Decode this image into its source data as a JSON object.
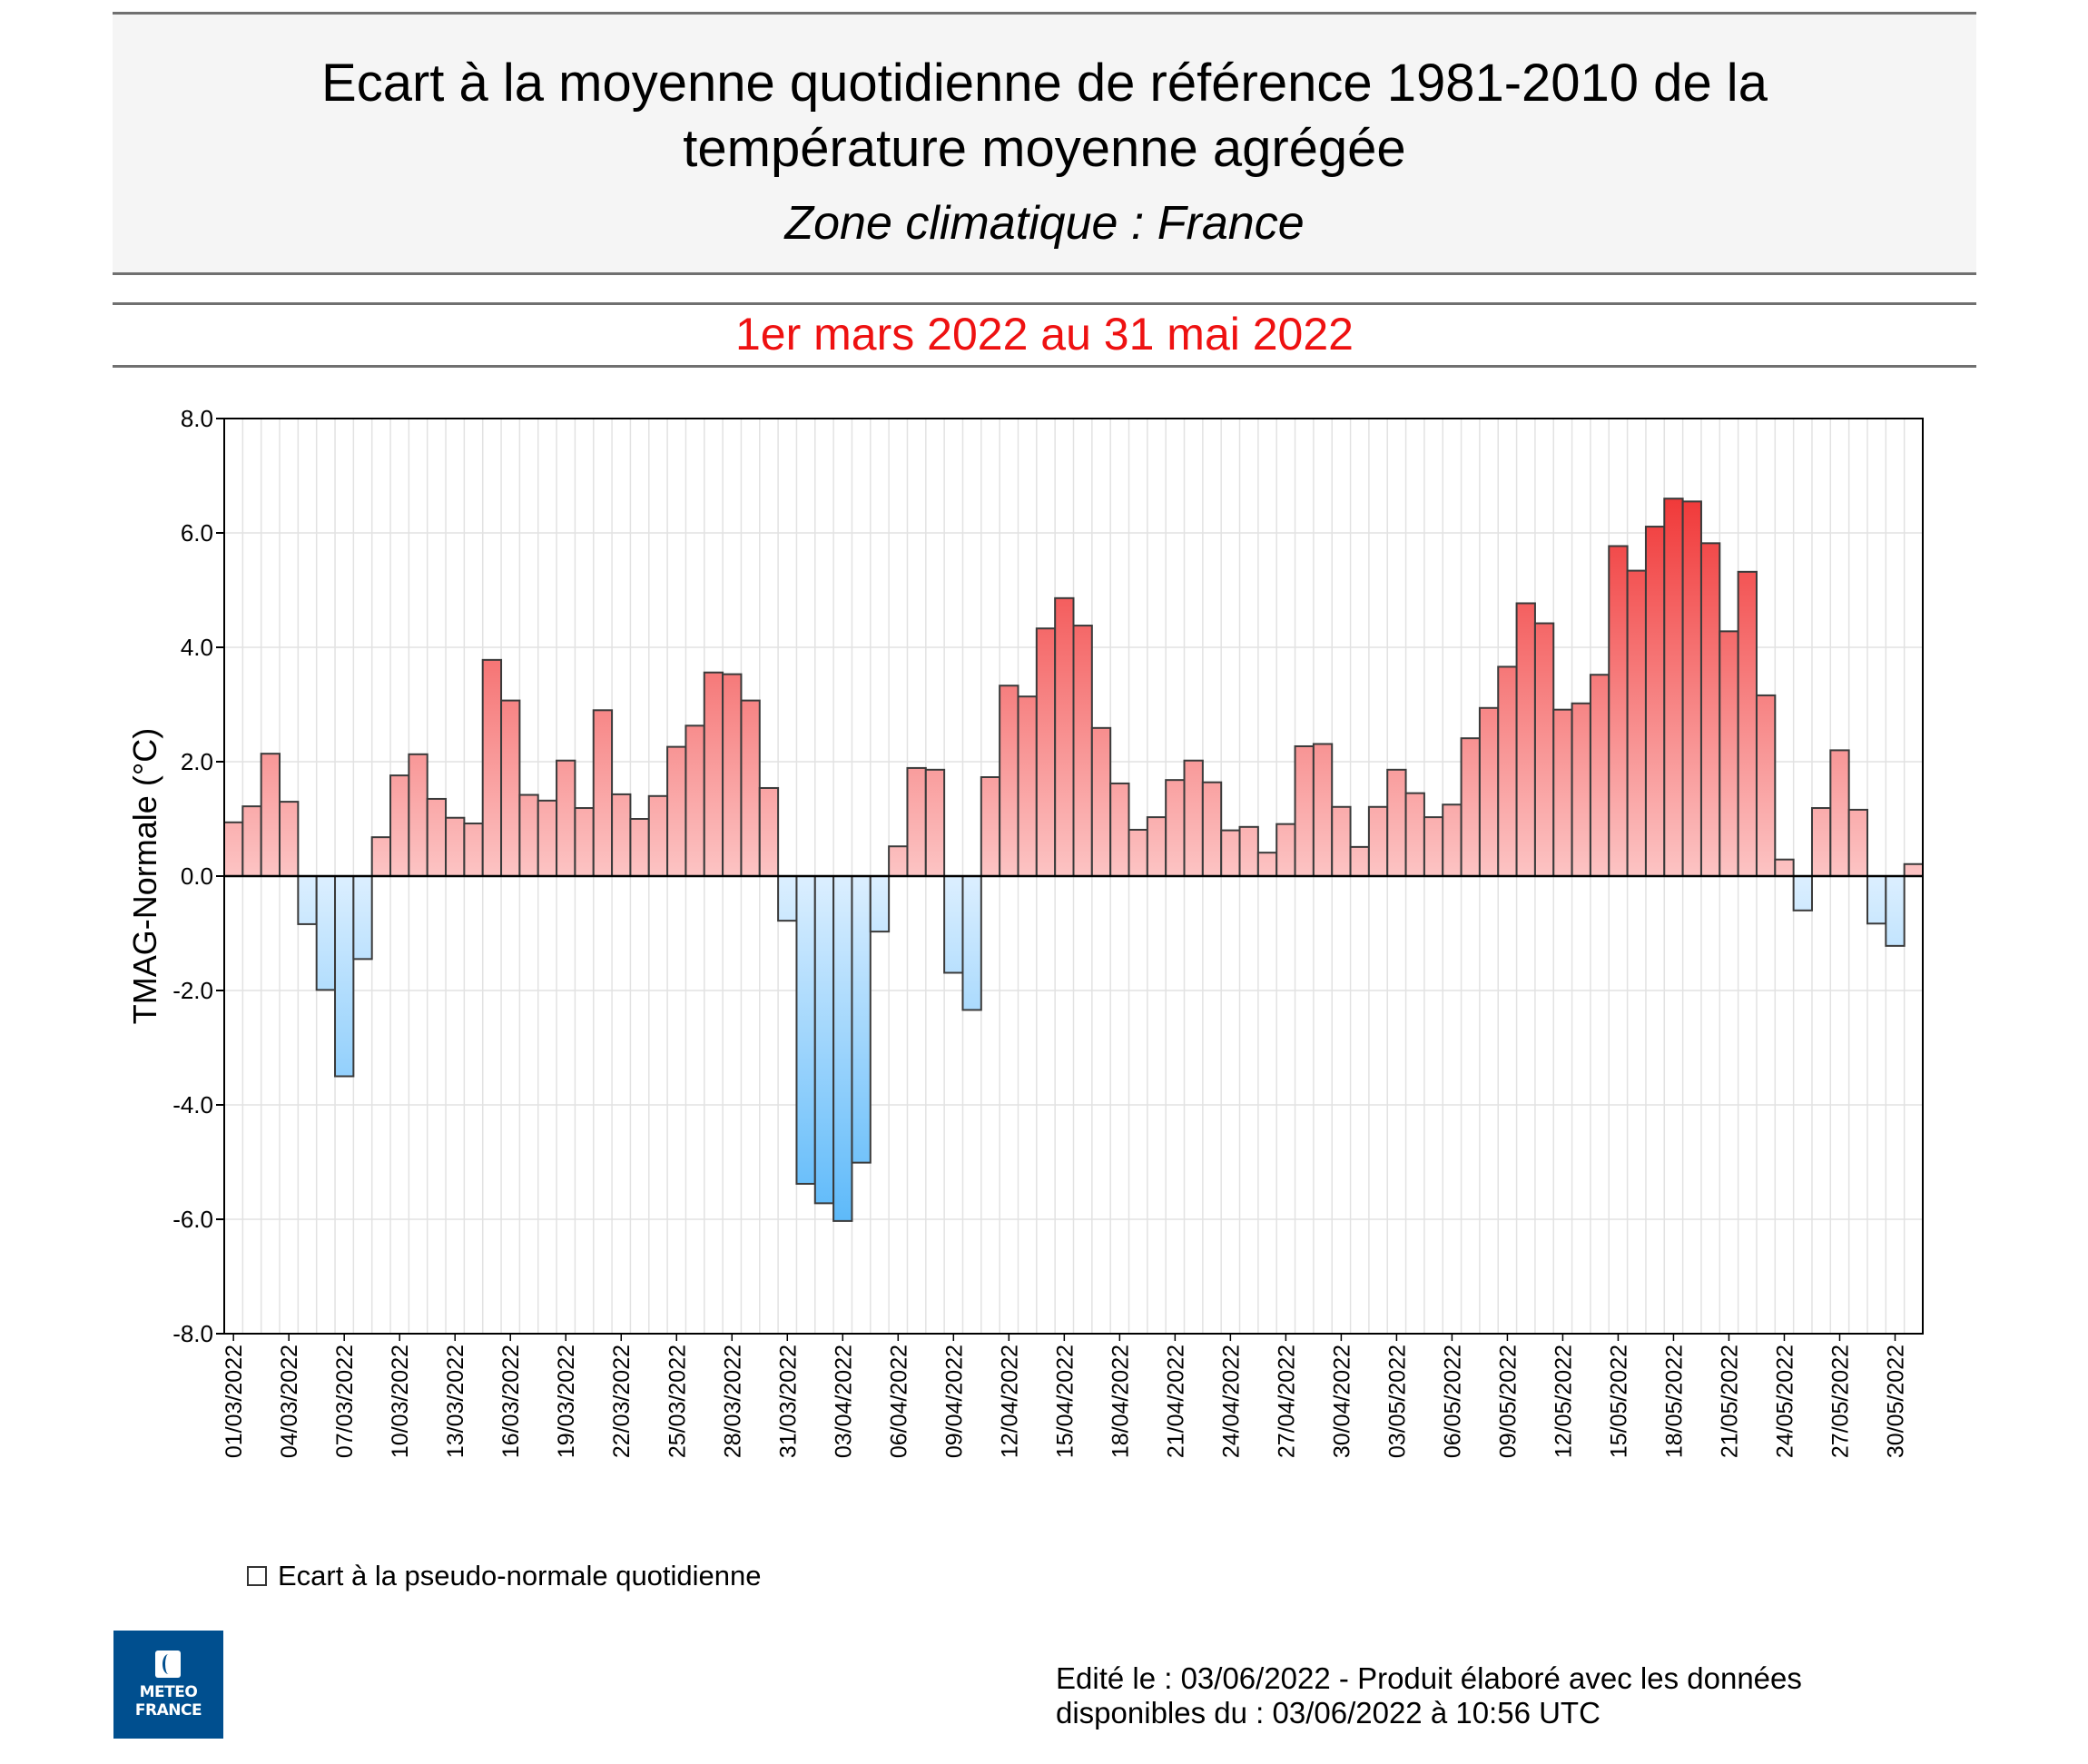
{
  "header": {
    "title_line1": "Ecart à la moyenne quotidienne de référence 1981-2010 de la",
    "title_line2": "température moyenne  agrégée",
    "subtitle": "Zone climatique : France",
    "period": "1er mars 2022 au 31 mai 2022"
  },
  "colors": {
    "period_text": "#ee1111",
    "positive_light": "#fcc4c4",
    "positive_dark": "#ee1c1c",
    "negative_light": "#dcefff",
    "negative_dark": "#34a8f7",
    "header_bg": "#f5f5f5",
    "logo_bg": "#004f8f"
  },
  "legend": {
    "label": "Ecart à la pseudo-normale quotidienne"
  },
  "logo": {
    "line1": "METEO",
    "line2": "FRANCE"
  },
  "footer": {
    "line1": "Edité le : 03/06/2022 - Produit élaboré avec les données",
    "line2": "disponibles du : 03/06/2022 à 10:56 UTC"
  },
  "chart_data": {
    "type": "bar",
    "title": "Ecart à la moyenne quotidienne de référence 1981-2010 de la température moyenne agrégée",
    "xlabel": "",
    "ylabel": "TMAG-Normale (°C)",
    "ylim": [
      -8,
      8
    ],
    "yticks": [
      "8.0",
      "6.0",
      "4.0",
      "2.0",
      "0.0",
      "-2.0",
      "-4.0",
      "-6.0",
      "-8.0"
    ],
    "ytick_values": [
      8,
      6,
      4,
      2,
      0,
      -2,
      -4,
      -6,
      -8
    ],
    "grid": true,
    "legend_position": "bottom-left",
    "xtick_every": 3,
    "categories": [
      "01/03/2022",
      "02/03/2022",
      "03/03/2022",
      "04/03/2022",
      "05/03/2022",
      "06/03/2022",
      "07/03/2022",
      "08/03/2022",
      "09/03/2022",
      "10/03/2022",
      "11/03/2022",
      "12/03/2022",
      "13/03/2022",
      "14/03/2022",
      "15/03/2022",
      "16/03/2022",
      "17/03/2022",
      "18/03/2022",
      "19/03/2022",
      "20/03/2022",
      "21/03/2022",
      "22/03/2022",
      "23/03/2022",
      "24/03/2022",
      "25/03/2022",
      "26/03/2022",
      "27/03/2022",
      "28/03/2022",
      "29/03/2022",
      "30/03/2022",
      "31/03/2022",
      "01/04/2022",
      "02/04/2022",
      "03/04/2022",
      "04/04/2022",
      "05/04/2022",
      "06/04/2022",
      "07/04/2022",
      "08/04/2022",
      "09/04/2022",
      "10/04/2022",
      "11/04/2022",
      "12/04/2022",
      "13/04/2022",
      "14/04/2022",
      "15/04/2022",
      "16/04/2022",
      "17/04/2022",
      "18/04/2022",
      "19/04/2022",
      "20/04/2022",
      "21/04/2022",
      "22/04/2022",
      "23/04/2022",
      "24/04/2022",
      "25/04/2022",
      "26/04/2022",
      "27/04/2022",
      "28/04/2022",
      "29/04/2022",
      "30/04/2022",
      "01/05/2022",
      "02/05/2022",
      "03/05/2022",
      "04/05/2022",
      "05/05/2022",
      "06/05/2022",
      "07/05/2022",
      "08/05/2022",
      "09/05/2022",
      "10/05/2022",
      "11/05/2022",
      "12/05/2022",
      "13/05/2022",
      "14/05/2022",
      "15/05/2022",
      "16/05/2022",
      "17/05/2022",
      "18/05/2022",
      "19/05/2022",
      "20/05/2022",
      "21/05/2022",
      "22/05/2022",
      "23/05/2022",
      "24/05/2022",
      "25/05/2022",
      "26/05/2022",
      "27/05/2022",
      "28/05/2022",
      "29/05/2022",
      "30/05/2022",
      "31/05/2022"
    ],
    "series": [
      {
        "name": "Ecart à la pseudo-normale quotidienne",
        "values": [
          0.94,
          1.22,
          2.14,
          1.3,
          -0.84,
          -1.99,
          -3.5,
          -1.45,
          0.68,
          1.76,
          2.13,
          1.35,
          1.02,
          0.92,
          3.78,
          3.07,
          1.42,
          1.32,
          2.02,
          1.19,
          2.9,
          1.43,
          1.0,
          1.4,
          2.26,
          2.63,
          3.56,
          3.53,
          3.07,
          1.54,
          -0.78,
          -5.38,
          -5.72,
          -6.03,
          -5.01,
          -0.97,
          0.52,
          1.89,
          1.86,
          -1.69,
          -2.34,
          1.73,
          3.33,
          3.14,
          4.33,
          4.86,
          4.38,
          2.59,
          1.62,
          0.81,
          1.03,
          1.68,
          2.02,
          1.64,
          0.8,
          0.86,
          0.41,
          0.91,
          2.27,
          2.31,
          1.21,
          0.51,
          1.21,
          1.86,
          1.45,
          1.03,
          1.25,
          2.41,
          2.94,
          3.66,
          4.77,
          4.42,
          2.91,
          3.02,
          3.52,
          5.77,
          5.34,
          6.11,
          6.6,
          6.55,
          5.82,
          4.28,
          5.32,
          3.16,
          0.29,
          -0.6,
          1.19,
          2.2,
          1.16,
          -0.83,
          -1.22,
          0.21
        ]
      }
    ]
  }
}
